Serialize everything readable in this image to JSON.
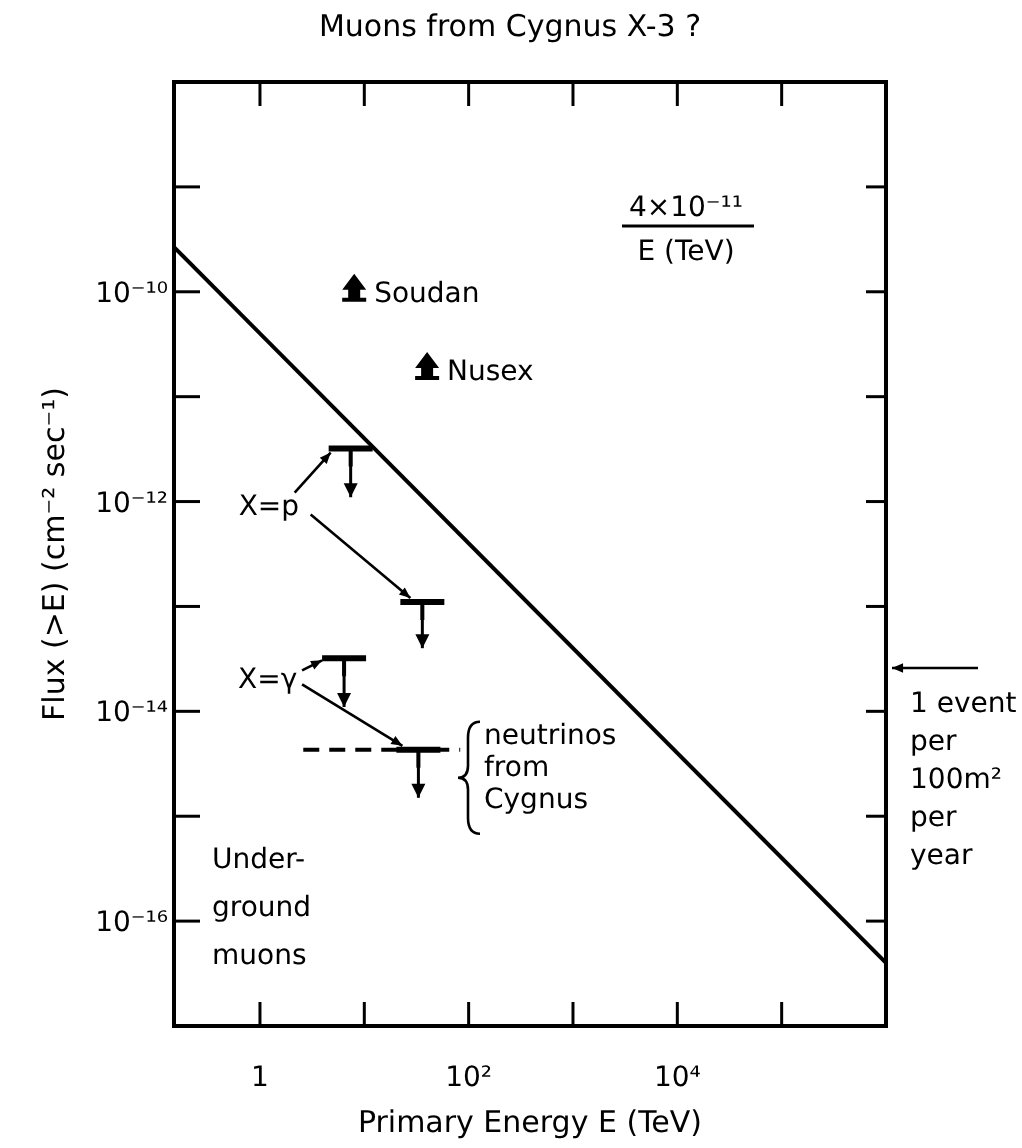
{
  "chart_data": {
    "type": "line",
    "title": "Muons from Cygnus X-3 ?",
    "xlabel": "Primary Energy E  (TeV)",
    "ylabel": "Flux (>E)  (cm⁻² sec⁻¹)",
    "log": "xy",
    "xlim": [
      0.15,
      1000000
    ],
    "ylim": [
      1e-17,
      1e-08
    ],
    "xticks": [
      {
        "value": 1,
        "label": "1"
      },
      {
        "value": 10,
        "label": null
      },
      {
        "value": 100,
        "label": "10²"
      },
      {
        "value": 1000,
        "label": null
      },
      {
        "value": 10000,
        "label": "10⁴"
      },
      {
        "value": 100000,
        "label": null
      }
    ],
    "yticks": [
      {
        "value": 1e-09,
        "label": null
      },
      {
        "value": 1e-10,
        "label": "10⁻¹⁰"
      },
      {
        "value": 1e-11,
        "label": null
      },
      {
        "value": 1e-12,
        "label": "10⁻¹²"
      },
      {
        "value": 1e-13,
        "label": null
      },
      {
        "value": 1e-14,
        "label": "10⁻¹⁴"
      },
      {
        "value": 1e-15,
        "label": null
      },
      {
        "value": 1e-16,
        "label": "10⁻¹⁶"
      }
    ],
    "series": [
      {
        "name": "4×10⁻¹¹\nE (TeV)",
        "color": "#000000",
        "line_style": "solid",
        "x": [
          0.15,
          1000000
        ],
        "values": [
          2.67e-10,
          4e-17
        ]
      },
      {
        "color": "#000000",
        "line_style": "dashed",
        "x": [
          2.6,
          83
        ],
        "values": [
          4.3e-15,
          4.3e-15
        ]
      },
      {
        "type": "scatter",
        "color": "#000000",
        "marker": "triangle",
        "x": [
          8,
          40
        ],
        "values": [
          1e-10,
          1.8e-11
        ]
      },
      {
        "type": "scatter",
        "color": "#000000",
        "x": [
          7.4,
          36,
          6.4,
          33
        ],
        "values": [
          3.2e-12,
          1.1e-13,
          3.2e-14,
          4.3e-15
        ],
        "errors": [
          [
            1.1e-12,
            3.2e-12
          ],
          [
            4e-14,
            1.1e-13
          ],
          [
            1.1e-14,
            3.2e-14
          ],
          [
            1.5e-15,
            4.3e-15
          ]
        ]
      }
    ],
    "annotations": [
      {
        "text": "Soudan",
        "x": 8,
        "y": 1e-10
      },
      {
        "text": "Nusex",
        "x": 40,
        "y": 1.8e-11
      },
      {
        "text": "X=p",
        "x": 7.4,
        "y": 3.2e-12
      },
      {
        "text": "X=γ",
        "x": 6.4,
        "y": 3.2e-14
      },
      "neutrinos\nfrom\nCygnus",
      "Under-\nground\nmuons",
      "1 event\nper\n100m²\nper\nyear"
    ]
  }
}
